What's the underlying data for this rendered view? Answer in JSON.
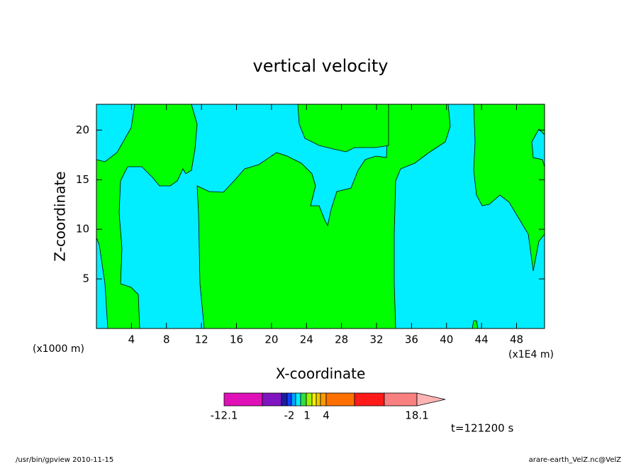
{
  "chart_data": {
    "type": "contour",
    "title": "vertical velocity",
    "xlabel": "X-coordinate",
    "ylabel": "Z-coordinate",
    "x_unit_label": "(x1E4 m)",
    "y_unit_label": "(x1000 m)",
    "xlim": [
      0,
      51.2
    ],
    "ylim": [
      0,
      22.6
    ],
    "xticks": [
      4,
      8,
      12,
      16,
      20,
      24,
      28,
      32,
      36,
      40,
      44,
      48
    ],
    "yticks": [
      5,
      10,
      15,
      20
    ],
    "field_colors": {
      "negative": "#00eeff",
      "positive": "#00ff00"
    },
    "colorbar": {
      "ticks": [
        -12.1,
        -2,
        1,
        4,
        18.1
      ],
      "colors": [
        "#e010b8",
        "#8014c0",
        "#1c1ca8",
        "#1040ff",
        "#00a4ff",
        "#00f0ff",
        "#30e040",
        "#a0f000",
        "#f0f000",
        "#f0c800",
        "#ff9a00",
        "#ff7000",
        "#ff1a1a",
        "#f88080",
        "#ffb4b4"
      ]
    },
    "time_label": "t=121200 s",
    "footer_left": "/usr/bin/gpview  2010-11-15",
    "footer_right": "arare-earth_VelZ.nc@VelZ"
  }
}
